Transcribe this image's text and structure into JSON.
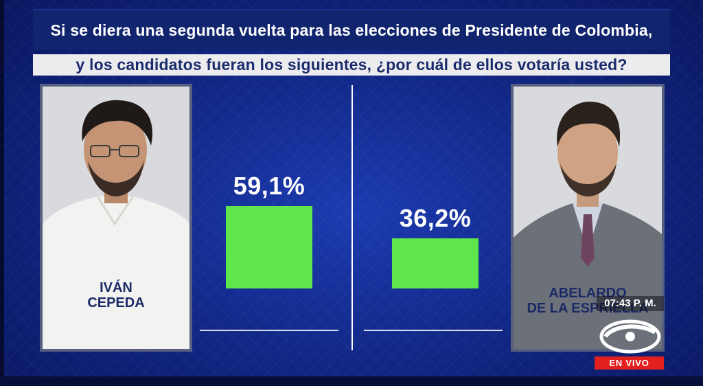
{
  "question": {
    "line1": "Si se diera una segunda vuelta para las elecciones de Presidente de Colombia,",
    "line2": "y los candidatos fueran los siguientes, ¿por cuál de ellos votaría usted?"
  },
  "candidates": [
    {
      "name_line1": "IVÁN",
      "name_line2": "CEPEDA",
      "percent_label": "59,1%",
      "value": 59.1
    },
    {
      "name_line1": "ABELARDO",
      "name_line2": "DE LA ESPRIELLA",
      "percent_label": "36,2%",
      "value": 36.2
    }
  ],
  "broadcast": {
    "time": "07:43 P. M.",
    "live_label": "EN VIVO",
    "logo_icon": "caracol-logo-icon"
  },
  "colors": {
    "bar": "#5fe64c",
    "background": "#142d92",
    "live": "#e32020"
  }
}
